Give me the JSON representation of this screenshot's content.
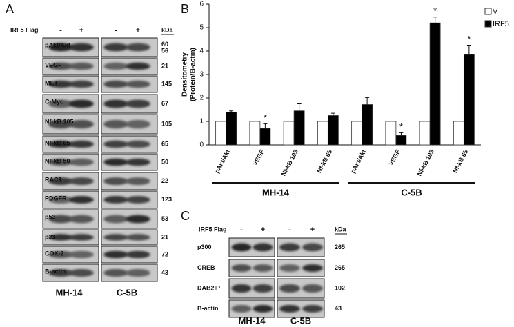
{
  "panel_a": {
    "label": "A",
    "treatment_label": "IRF5 Flag",
    "lanes": [
      "-",
      "+",
      "-",
      "+"
    ],
    "unit": "kDa",
    "rows": [
      {
        "name": "pAkt/Akt",
        "kda": [
          60,
          56
        ]
      },
      {
        "name": "VEGF",
        "kda": [
          21
        ]
      },
      {
        "name": "MET",
        "kda": [
          145
        ]
      },
      {
        "name": "C-Myc",
        "kda": [
          67
        ]
      },
      {
        "name": "Nf-kB 105",
        "kda": [
          105
        ]
      },
      {
        "name": "Nf-kB 65",
        "kda": [
          65
        ]
      },
      {
        "name": "Nf-kB 50",
        "kda": [
          50
        ]
      },
      {
        "name": "RAC1",
        "kda": [
          22
        ]
      },
      {
        "name": "PDGFR",
        "kda": [
          123
        ]
      },
      {
        "name": "p53",
        "kda": [
          53
        ]
      },
      {
        "name": "p21",
        "kda": [
          21
        ]
      },
      {
        "name": "COX-2",
        "kda": [
          72
        ]
      },
      {
        "name": "B-actin",
        "kda": [
          43
        ]
      }
    ],
    "cell_lines": [
      "MH-14",
      "C-5B"
    ]
  },
  "chart_data": {
    "type": "bar",
    "label": "B",
    "y_label": [
      "Densitometry",
      "(Protein/B-actin)"
    ],
    "categories": [
      "pAkt/Akt",
      "VEGF",
      "Nf-kB 105",
      "Nf-kB 65",
      "pAkt/Akt",
      "VEGF",
      "Nf-kB 105",
      "Nf-kB 65"
    ],
    "groups": [
      "MH-14",
      "C-5B"
    ],
    "series": [
      {
        "name": "V",
        "color": "#ffffff",
        "values": [
          1,
          1,
          1,
          1,
          1,
          1,
          1,
          1
        ]
      },
      {
        "name": "IRF5",
        "color": "#000000",
        "values": [
          1.4,
          0.7,
          1.45,
          1.25,
          1.72,
          0.4,
          5.2,
          3.85
        ],
        "errors": [
          0.05,
          0.2,
          0.3,
          0.1,
          0.3,
          0.12,
          0.25,
          0.4
        ]
      }
    ],
    "markers": [
      null,
      "*",
      null,
      null,
      null,
      "*",
      "*",
      "*"
    ],
    "ylim": [
      0,
      6
    ],
    "yticks": [
      0,
      1,
      2,
      3,
      4,
      5,
      6
    ],
    "legend": "top-right"
  },
  "panel_c": {
    "label": "C",
    "treatment_label": "IRF5 Flag",
    "lanes": [
      "-",
      "+",
      "-",
      "+"
    ],
    "unit": "kDa",
    "rows": [
      {
        "name": "p300",
        "kda": [
          265
        ]
      },
      {
        "name": "CREB",
        "kda": [
          265
        ]
      },
      {
        "name": "DAB2IP",
        "kda": [
          102
        ]
      },
      {
        "name": "B-actin",
        "kda": [
          43
        ]
      }
    ],
    "cell_lines": [
      "MH-14",
      "C-5B"
    ]
  }
}
